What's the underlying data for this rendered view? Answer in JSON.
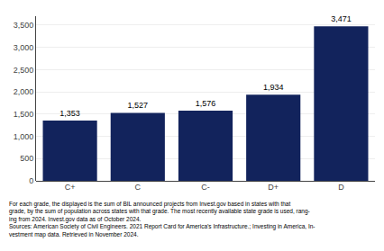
{
  "chart_data": {
    "type": "bar",
    "categories": [
      "C+",
      "C",
      "C-",
      "D+",
      "D"
    ],
    "values": [
      1353,
      1527,
      1576,
      1934,
      3471
    ],
    "value_labels": [
      "1,353",
      "1,527",
      "1,576",
      "1,934",
      "3,471"
    ],
    "data_labels": true,
    "color": "#12235c",
    "ylim": [
      0,
      3700
    ],
    "yticks": [
      0,
      500,
      {
        "value": 1000,
        "label": "1,000"
      },
      {
        "value": 1500,
        "label": "1,500"
      },
      {
        "value": 2000,
        "label": "2,000"
      },
      {
        "value": 2500,
        "label": "2,500"
      },
      {
        "value": 3000,
        "label": "3,000"
      },
      {
        "value": 3500,
        "label": "3,500"
      }
    ],
    "grid": true,
    "annotations": [
      "For each grade, the displayed is the sum of BIL announced projects from Invest.gov based in states with that\ngrade, by the sum of population across states with that grade. The most recently available state grade is used, rang-\ning from 2024. Invest.gov data as of October 2024.\nSources: American Society of Civil Engineers. 2021 Report Card for America’s Infrastructure.; Investing in America, In-\nvestment map data. Retrieved in November 2024."
    ]
  }
}
